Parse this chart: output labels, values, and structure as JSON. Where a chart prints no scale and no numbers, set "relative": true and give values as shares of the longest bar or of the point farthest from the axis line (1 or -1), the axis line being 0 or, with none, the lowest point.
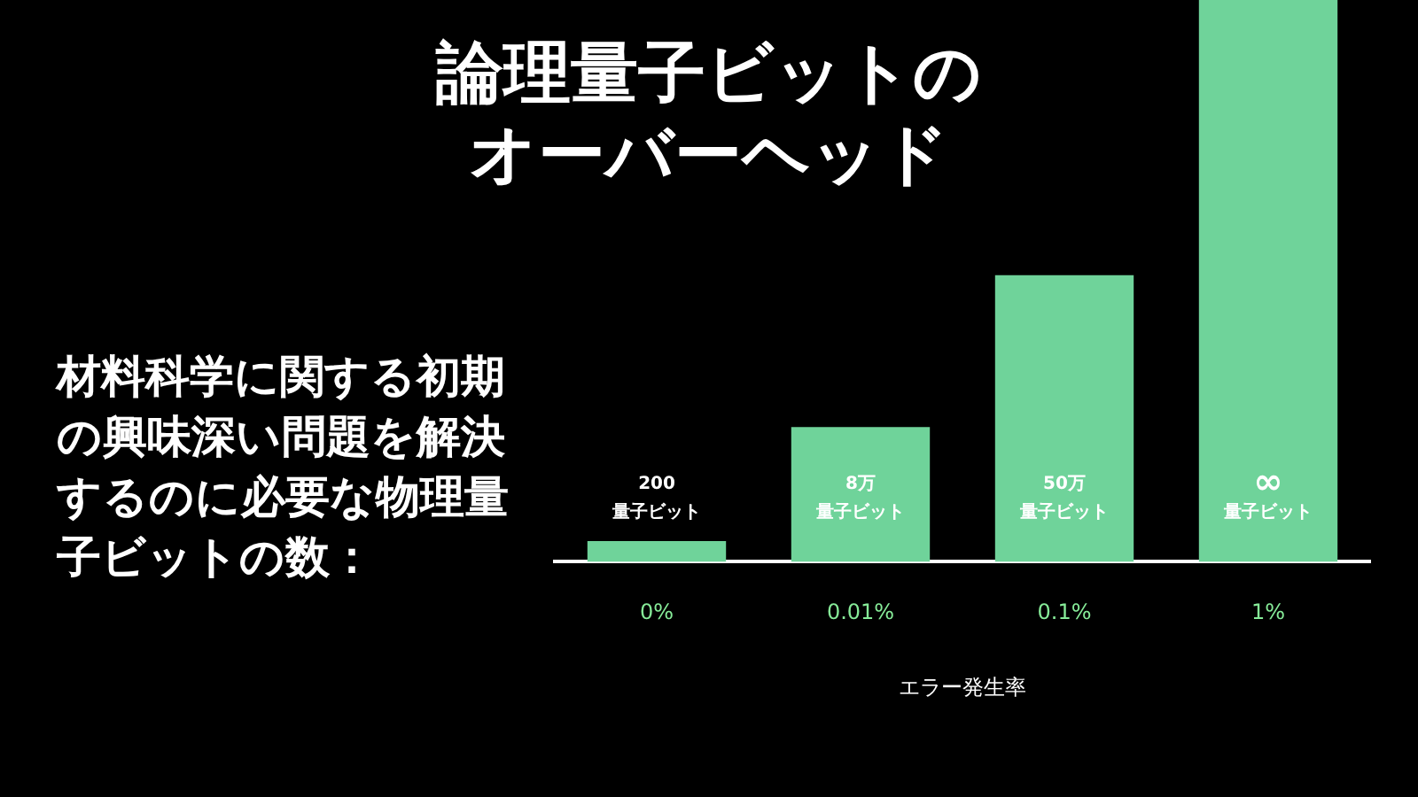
{
  "chart_data": {
    "type": "bar",
    "title": "論理量子ビットのオーバーヘッド",
    "xlabel": "エラー発生率",
    "categories": [
      "0%",
      "0.01%",
      "0.1%",
      "1%"
    ],
    "relative": true,
    "values": [
      0.037,
      0.24,
      0.51,
      1
    ],
    "color": "#6fd39a",
    "annotations": [
      "材料科学に関する初期の興味深い問題を解決するのに必要な物理量子ビットの数：",
      "200",
      "量子ビット",
      "8万",
      "量子ビット",
      "50万",
      "量子ビット",
      "∞",
      "量子ビット"
    ]
  }
}
